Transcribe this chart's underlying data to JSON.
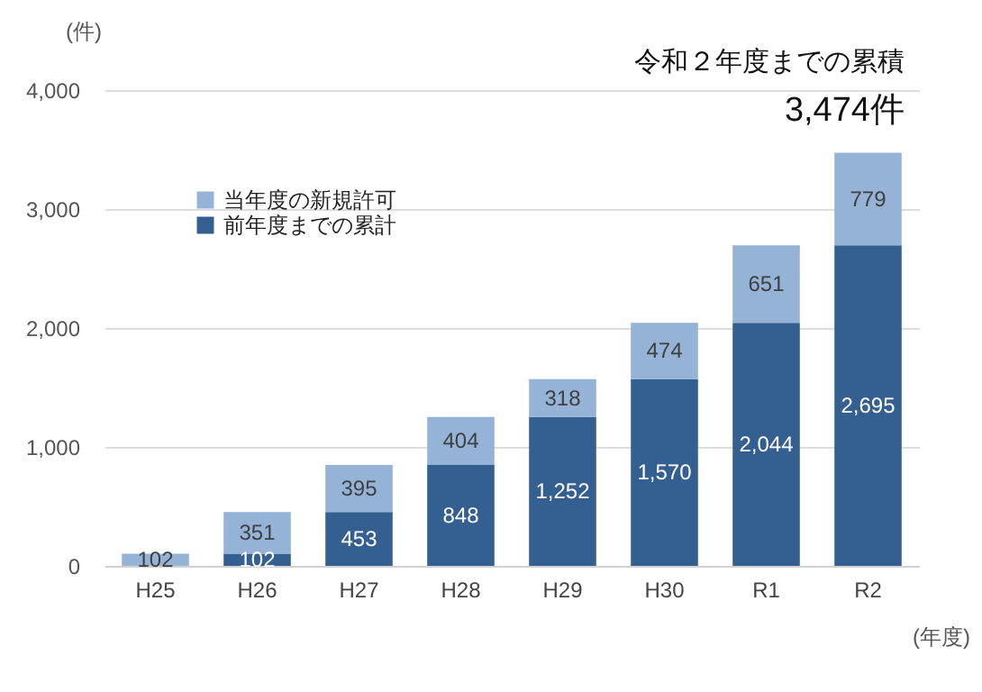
{
  "chart_data": {
    "type": "bar",
    "stacked": true,
    "ylabel": "(件)",
    "xlabel": "(年度)",
    "categories": [
      "H25",
      "H26",
      "H27",
      "H28",
      "H29",
      "H30",
      "R1",
      "R2"
    ],
    "series": [
      {
        "name": "前年度までの累計",
        "color": "#345f91",
        "values": [
          null,
          102,
          453,
          848,
          1252,
          1570,
          2044,
          2695
        ],
        "value_labels": [
          null,
          "102",
          "453",
          "848",
          "1,252",
          "1,570",
          "2,044",
          "2,695"
        ]
      },
      {
        "name": "当年度の新規許可",
        "color": "#95b3d7",
        "values": [
          102,
          351,
          395,
          404,
          318,
          474,
          651,
          779
        ],
        "value_labels": [
          "102",
          "351",
          "395",
          "404",
          "318",
          "474",
          "651",
          "779"
        ]
      }
    ],
    "ylim": [
      0,
      4000
    ],
    "yticks": [
      0,
      {
        "value": 1000,
        "label": "1,000"
      },
      {
        "value": 2000,
        "label": "2,000"
      },
      {
        "value": 3000,
        "label": "3,000"
      },
      {
        "value": 4000,
        "label": "4,000"
      }
    ],
    "grid": "y",
    "legend": "top left",
    "annotations": [
      "令和２年度までの累積",
      "3,474件"
    ]
  }
}
